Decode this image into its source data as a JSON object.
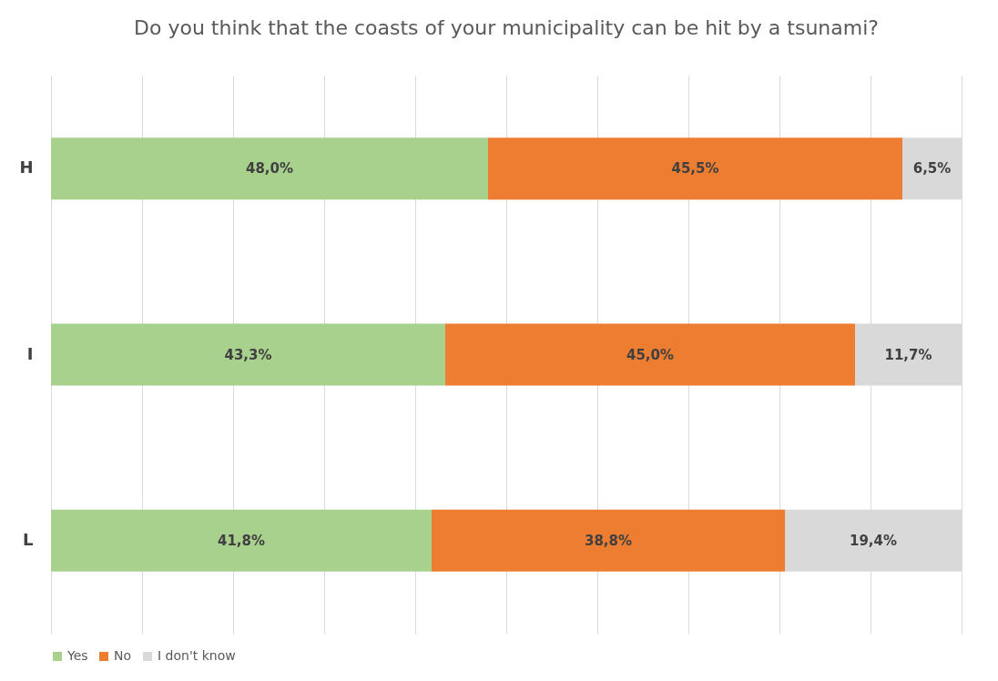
{
  "chart_data": {
    "type": "bar",
    "orientation": "horizontal",
    "stacked": true,
    "title": "Do you think that the coasts of your municipality can be hit by a tsunami?",
    "categories": [
      "H",
      "I",
      "L"
    ],
    "series": [
      {
        "name": "Yes",
        "color": "#a9d18e",
        "values": [
          48.0,
          43.3,
          41.8
        ],
        "value_labels": [
          "48,0%",
          "43,3%",
          "41,8%"
        ]
      },
      {
        "name": "No",
        "color": "#ed7d31",
        "values": [
          45.5,
          45.0,
          38.8
        ],
        "value_labels": [
          "45,5%",
          "45,0%",
          "38,8%"
        ]
      },
      {
        "name": "I don't know",
        "color": "#d9d9d9",
        "values": [
          6.5,
          11.7,
          19.4
        ],
        "value_labels": [
          "6,5%",
          "11,7%",
          "19,4%"
        ]
      }
    ],
    "xlim": [
      0,
      100
    ],
    "xticks": [
      {
        "value": 0,
        "label": null
      },
      {
        "value": 10,
        "label": null
      },
      {
        "value": 20,
        "label": null
      },
      {
        "value": 30,
        "label": null
      },
      {
        "value": 40,
        "label": null
      },
      {
        "value": 50,
        "label": null
      },
      {
        "value": 60,
        "label": null
      },
      {
        "value": 70,
        "label": null
      },
      {
        "value": 80,
        "label": null
      },
      {
        "value": 90,
        "label": null
      },
      {
        "value": 100,
        "label": null
      }
    ],
    "tick_labels": "y",
    "grid": "x",
    "legend": "bottom"
  }
}
